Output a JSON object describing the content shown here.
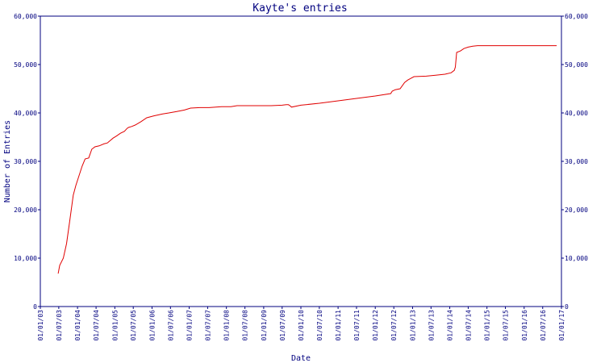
{
  "chart_data": {
    "type": "line",
    "title": "Kayte's entries",
    "xlabel": "Date",
    "ylabel": "Number of Entries",
    "ylim": [
      0,
      60000
    ],
    "xlim": [
      "2003-01-01",
      "2017-01-01"
    ],
    "y_ticks": [
      0,
      10000,
      20000,
      30000,
      40000,
      50000,
      60000
    ],
    "y_tick_labels": [
      "0",
      "10,000",
      "20,000",
      "30,000",
      "40,000",
      "50,000",
      "60,000"
    ],
    "x_ticks": [
      "2003-01-01",
      "2003-07-01",
      "2004-01-01",
      "2004-07-01",
      "2005-01-01",
      "2005-07-01",
      "2006-01-01",
      "2006-07-01",
      "2007-01-01",
      "2007-07-01",
      "2008-01-01",
      "2008-07-01",
      "2009-01-01",
      "2009-07-01",
      "2010-01-01",
      "2010-07-01",
      "2011-01-01",
      "2011-07-01",
      "2012-01-01",
      "2012-07-01",
      "2013-01-01",
      "2013-07-01",
      "2014-01-01",
      "2014-07-01",
      "2015-01-01",
      "2015-07-01",
      "2016-01-01",
      "2016-07-01",
      "2017-01-01"
    ],
    "x_tick_labels": [
      "01/01/03",
      "01/07/03",
      "01/01/04",
      "01/07/04",
      "01/01/05",
      "01/07/05",
      "01/01/06",
      "01/07/06",
      "01/01/07",
      "01/07/07",
      "01/01/08",
      "01/07/08",
      "01/01/09",
      "01/07/09",
      "01/01/10",
      "01/07/10",
      "01/01/11",
      "01/07/11",
      "01/01/12",
      "01/07/12",
      "01/01/13",
      "01/07/13",
      "01/01/14",
      "01/07/14",
      "01/01/15",
      "01/07/15",
      "01/01/16",
      "01/07/16",
      "01/01/17"
    ],
    "grid": false,
    "series": [
      {
        "color": "#e00000",
        "x": [
          "2003-06-25",
          "2003-07-10",
          "2003-08-15",
          "2003-09-15",
          "2003-10-15",
          "2003-11-20",
          "2003-12-15",
          "2004-01-15",
          "2004-02-15",
          "2004-03-15",
          "2004-04-20",
          "2004-05-20",
          "2004-06-20",
          "2004-08-01",
          "2004-09-15",
          "2004-10-20",
          "2004-12-15",
          "2005-01-15",
          "2005-02-25",
          "2005-04-05",
          "2005-05-01",
          "2005-05-15",
          "2005-06-15",
          "2005-07-20",
          "2005-09-15",
          "2005-11-10",
          "2006-01-20",
          "2006-04-15",
          "2006-06-15",
          "2006-09-01",
          "2006-11-15",
          "2007-01-15",
          "2007-04-15",
          "2007-07-15",
          "2007-11-15",
          "2008-02-15",
          "2008-04-15",
          "2008-07-15",
          "2008-11-15",
          "2009-03-15",
          "2009-07-01",
          "2009-08-10",
          "2009-09-01",
          "2009-09-15",
          "2009-10-01",
          "2010-01-01",
          "2010-07-01",
          "2011-01-01",
          "2011-07-01",
          "2012-01-01",
          "2012-06-01",
          "2012-06-15",
          "2012-07-15",
          "2012-09-01",
          "2012-10-15",
          "2012-11-15",
          "2013-01-15",
          "2013-05-15",
          "2013-08-15",
          "2013-11-15",
          "2014-01-15",
          "2014-02-15",
          "2014-02-25",
          "2014-03-10",
          "2014-04-15",
          "2014-05-20",
          "2014-07-01",
          "2014-08-15",
          "2014-10-01",
          "2015-01-01",
          "2015-06-01",
          "2016-01-01",
          "2016-06-01",
          "2016-11-15"
        ],
        "y": [
          6800,
          8500,
          10000,
          13000,
          17500,
          23000,
          25000,
          27000,
          29000,
          30500,
          30700,
          32500,
          33000,
          33200,
          33600,
          33800,
          34800,
          35200,
          35800,
          36200,
          36800,
          37000,
          37200,
          37500,
          38200,
          39000,
          39400,
          39800,
          40000,
          40300,
          40600,
          41000,
          41100,
          41100,
          41300,
          41300,
          41500,
          41500,
          41500,
          41500,
          41600,
          41700,
          41700,
          41500,
          41200,
          41600,
          42000,
          42500,
          43000,
          43500,
          44000,
          44500,
          44800,
          45000,
          46300,
          46800,
          47500,
          47600,
          47800,
          48000,
          48300,
          48800,
          49500,
          52500,
          52800,
          53300,
          53600,
          53800,
          53900,
          53900,
          53900,
          53900,
          53900,
          53900
        ]
      }
    ]
  }
}
